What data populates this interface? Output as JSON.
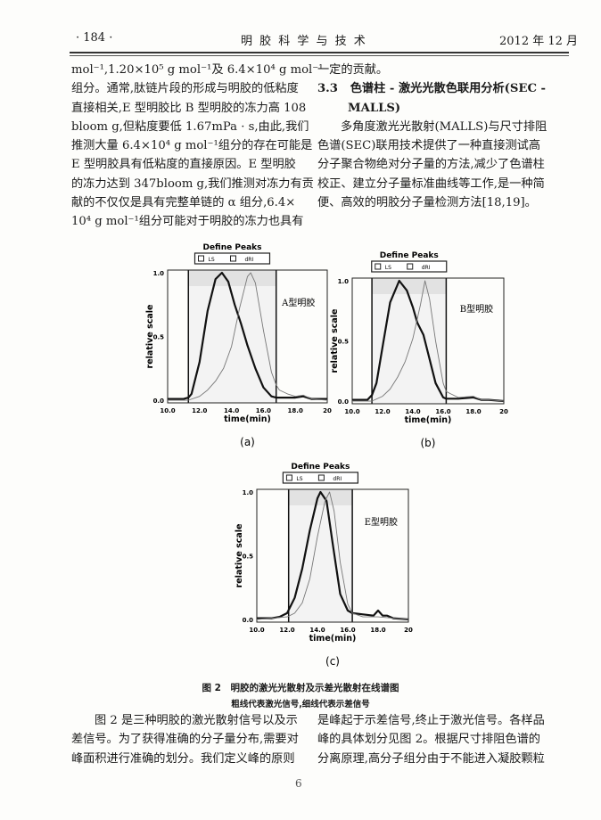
{
  "header": {
    "page_number": "· 184 ·",
    "journal": "明 胶 科 学 与 技 术",
    "date": "2012 年 12 月"
  },
  "left_column": [
    "mol⁻¹,1.20×10⁵ g mol⁻¹及 6.4×10⁴ g mol⁻¹",
    "组分。通常,肽链片段的形成与明胶的低粘度",
    "直接相关,E 型明胶比 B 型明胶的冻力高 108",
    "bloom g,但粘度要低 1.67mPa · s,由此,我们",
    "推测大量 6.4×10⁴ g mol⁻¹组分的存在可能是",
    "E 型明胶具有低粘度的直接原因。E 型明胶",
    "的冻力达到 347bloom g,我们推测对冻力有贡",
    "献的不仅仅是具有完整单链的 α 组分,6.4×",
    "10⁴ g mol⁻¹组分可能对于明胶的冻力也具有"
  ],
  "right_column": {
    "line1": "一定的贡献。",
    "section_number": "3.3",
    "section_title_1": "色谱柱 - 激光光散色联用分析(SEC -",
    "section_title_2": "MALLS)",
    "lines": [
      "多角度激光光散射(MALLS)与尺寸排阻",
      "色谱(SEC)联用技术提供了一种直接测试高",
      "分子聚合物绝对分子量的方法,减少了色谱柱",
      "校正、建立分子量标准曲线等工作,是一种简",
      "便、高效的明胶分子量检测方法[18,19]。"
    ]
  },
  "figure": {
    "title": "图 2　明胶的激光光散射及示差光散射在线谱图",
    "subtitle": "粗线代表激光信号,细线代表示差信号"
  },
  "bottom_left": [
    "图 2 是三种明胶的激光散射信号以及示",
    "差信号。为了获得准确的分子量分布,需要对",
    "峰面积进行准确的划分。我们定义峰的原则"
  ],
  "bottom_right": [
    "是峰起于示差信号,终止于激光信号。各样品",
    "峰的具体划分见图 2。根据尺寸排阻色谱的",
    "分离原理,高分子组分由于不能进入凝胶颗粒"
  ],
  "footer_page": "6",
  "chart_data": [
    {
      "type": "line",
      "panel_label": "(a)",
      "title": "Define Peaks",
      "legend": [
        "LS",
        "dRI"
      ],
      "annotation": "A型明胶",
      "xlabel": "time(min)",
      "ylabel": "relative scale",
      "xlim": [
        10,
        20
      ],
      "ylim": [
        0,
        1
      ],
      "xticks": [
        "10.0",
        "12.0",
        "14.0",
        "16.0",
        "18.0",
        "20"
      ],
      "yticks": [
        "0.0",
        "0.5",
        "1.0"
      ],
      "peak_window": [
        11.3,
        16.8
      ],
      "series": [
        {
          "name": "LS",
          "x": [
            10,
            11,
            11.3,
            11.5,
            12,
            12.5,
            13,
            13.4,
            13.8,
            14.2,
            14.6,
            15,
            15.5,
            16,
            16.5,
            16.8,
            17,
            18,
            18.5,
            19,
            20
          ],
          "y": [
            0.01,
            0.01,
            0.02,
            0.05,
            0.3,
            0.7,
            0.95,
            1.0,
            0.93,
            0.75,
            0.6,
            0.43,
            0.25,
            0.1,
            0.03,
            0.02,
            0.02,
            0.02,
            0.03,
            0.01,
            0.01
          ]
        },
        {
          "name": "dRI",
          "x": [
            10,
            11.3,
            12,
            12.5,
            13,
            13.5,
            14,
            14.5,
            15,
            15.2,
            15.5,
            16,
            16.5,
            16.8,
            17,
            17.5,
            18,
            18.5,
            19,
            20
          ],
          "y": [
            0,
            0,
            0.03,
            0.08,
            0.15,
            0.25,
            0.42,
            0.72,
            0.97,
            1.0,
            0.92,
            0.55,
            0.22,
            0.12,
            0.08,
            0.05,
            0.03,
            0.04,
            0.01,
            0
          ]
        }
      ]
    },
    {
      "type": "line",
      "panel_label": "(b)",
      "title": "Define Peaks",
      "legend": [
        "LS",
        "dRI"
      ],
      "annotation": "B型明胶",
      "xlabel": "time(min)",
      "ylabel": "relative scale",
      "xlim": [
        10,
        20
      ],
      "ylim": [
        0,
        1
      ],
      "xticks": [
        "10.0",
        "12.0",
        "14.0",
        "16.0",
        "18.0",
        "20"
      ],
      "yticks": [
        "0.0",
        "0.5",
        "1.0"
      ],
      "peak_window": [
        11.3,
        16.2
      ],
      "series": [
        {
          "name": "LS",
          "x": [
            10,
            11,
            11.3,
            11.6,
            12,
            12.5,
            13.1,
            13.6,
            14,
            14.3,
            14.7,
            15,
            15.5,
            16,
            16.2,
            17,
            18,
            18.5,
            19,
            20
          ],
          "y": [
            0.01,
            0.01,
            0.05,
            0.15,
            0.45,
            0.82,
            1.0,
            0.92,
            0.78,
            0.65,
            0.55,
            0.4,
            0.15,
            0.03,
            0.02,
            0.02,
            0.03,
            0.01,
            0.01,
            0
          ]
        },
        {
          "name": "dRI",
          "x": [
            10,
            11.3,
            12,
            12.5,
            13,
            13.5,
            14,
            14.5,
            14.8,
            15.1,
            15.5,
            16,
            16.2,
            16.5,
            17,
            18,
            18.5,
            19,
            20
          ],
          "y": [
            0,
            0,
            0.04,
            0.1,
            0.2,
            0.33,
            0.52,
            0.8,
            1.0,
            0.85,
            0.5,
            0.15,
            0.08,
            0.06,
            0.03,
            0.04,
            0.01,
            0.01,
            0
          ]
        }
      ]
    },
    {
      "type": "line",
      "panel_label": "(c)",
      "title": "Define Peaks",
      "legend": [
        "LS",
        "dRI"
      ],
      "annotation": "E型明胶",
      "xlabel": "time(min)",
      "ylabel": "relative scale",
      "xlim": [
        10,
        20
      ],
      "ylim": [
        0,
        1
      ],
      "xticks": [
        "10.0",
        "12.0",
        "14.0",
        "16.0",
        "18.0",
        "20"
      ],
      "yticks": [
        "0.0",
        "0.5",
        "1.0"
      ],
      "peak_window": [
        12.1,
        16.3
      ],
      "series": [
        {
          "name": "LS",
          "x": [
            10,
            11,
            11.5,
            12,
            12.5,
            13,
            13.5,
            14,
            14.2,
            14.6,
            15,
            15.5,
            16,
            16.3,
            17,
            17.7,
            18,
            18.3,
            18.6,
            19,
            20
          ],
          "y": [
            0.01,
            0.01,
            0.02,
            0.05,
            0.17,
            0.4,
            0.7,
            0.95,
            1.0,
            0.93,
            0.6,
            0.2,
            0.07,
            0.05,
            0.04,
            0.03,
            0.07,
            0.03,
            0.03,
            0.01,
            0
          ]
        },
        {
          "name": "dRI",
          "x": [
            10,
            12,
            12.5,
            13,
            13.5,
            14,
            14.5,
            14.8,
            15.1,
            15.5,
            16,
            16.3,
            17,
            18,
            19,
            20
          ],
          "y": [
            0,
            0.02,
            0.05,
            0.13,
            0.32,
            0.65,
            0.93,
            1.0,
            0.85,
            0.45,
            0.12,
            0.05,
            0.02,
            0.02,
            0.01,
            0
          ]
        }
      ]
    }
  ]
}
